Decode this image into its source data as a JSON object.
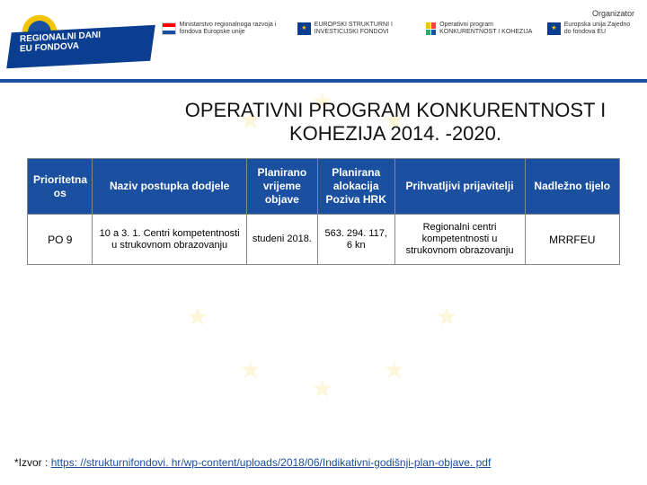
{
  "header": {
    "organizer_label": "Organizator",
    "logo": {
      "line1": "REGIONALNI DANI",
      "line2": "EU FONDOVA"
    },
    "partners": {
      "p1": "Ministarstvo regionalnoga razvoja i fondova Europske unije",
      "p2": "EUROPSKI STRUKTURNI I INVESTICIJSKI FONDOVI",
      "p3": "Operativni program KONKURENTNOST I KOHEZIJA",
      "p4": "Europska unija Zajedno do fondova EU"
    }
  },
  "title": "OPERATIVNI PROGRAM KONKURENTNOST I KOHEZIJA 2014. -2020.",
  "table": {
    "header_bg": "#1b4fa0",
    "header_color": "#ffffff",
    "border_color": "#888888",
    "columns": [
      {
        "key": "col0",
        "label": "Prioritetna os",
        "width": "11%"
      },
      {
        "key": "col1",
        "label": "Naziv postupka dodjele",
        "width": "26%"
      },
      {
        "key": "col2",
        "label": "Planirano vrijeme objave",
        "width": "12%"
      },
      {
        "key": "col3",
        "label": "Planirana alokacija Poziva HRK",
        "width": "13%"
      },
      {
        "key": "col4",
        "label": "Prihvatljivi prijavitelji",
        "width": "22%"
      },
      {
        "key": "col5",
        "label": "Nadležno tijelo",
        "width": "16%"
      }
    ],
    "rows": [
      {
        "col0": "PO 9",
        "col1": "10 a 3. 1. Centri kompetentnosti u strukovnom obrazovanju",
        "col2": "studeni 2018.",
        "col3": "563. 294. 117, 6 kn",
        "col4": "Regionalni centri kompetentnosti u strukovnom obrazovanju",
        "col5": "MRRFEU"
      }
    ]
  },
  "footer": {
    "prefix": "*Izvor : ",
    "link_text": "https: //strukturnifondovi. hr/wp-content/uploads/2018/06/Indikativni-godišnji-plan-objave. pdf",
    "link_href": "https://strukturnifondovi.hr/wp-content/uploads/2018/06/Indikativni-godišnji-plan-objave.pdf"
  },
  "style": {
    "accent": "#1b4fa0",
    "star_color": "#f2c500",
    "title_fontsize": 22
  }
}
